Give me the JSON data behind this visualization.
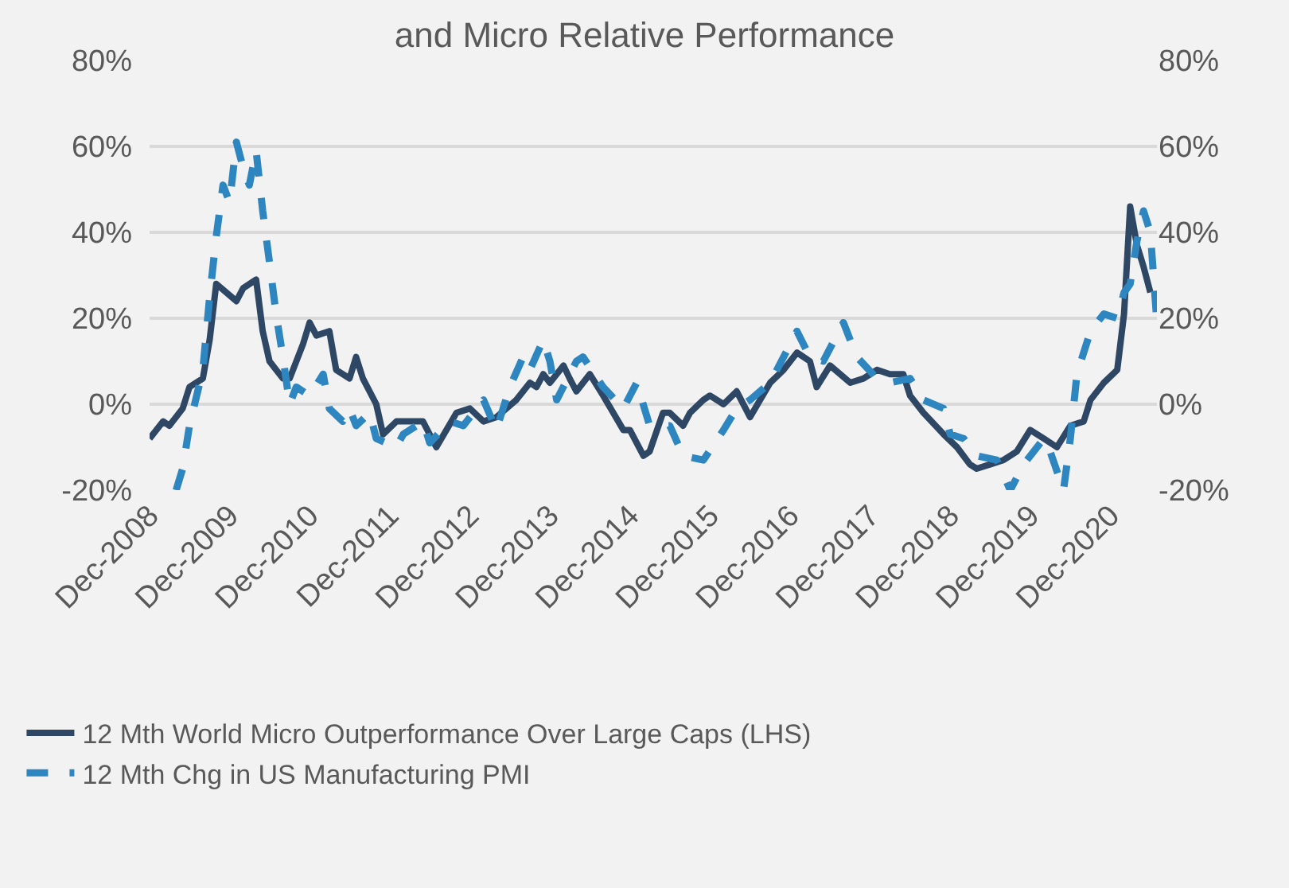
{
  "chart_data": {
    "type": "line",
    "title": "and Micro Relative Performance",
    "xlim": [
      "2008-12",
      "2021-07"
    ],
    "xticks": [
      {
        "value": "2008-12",
        "label": "Dec-2008"
      },
      {
        "value": "2009-12",
        "label": "Dec-2009"
      },
      {
        "value": "2010-12",
        "label": "Dec-2010"
      },
      {
        "value": "2011-12",
        "label": "Dec-2011"
      },
      {
        "value": "2012-12",
        "label": "Dec-2012"
      },
      {
        "value": "2013-12",
        "label": "Dec-2013"
      },
      {
        "value": "2014-12",
        "label": "Dec-2014"
      },
      {
        "value": "2015-12",
        "label": "Dec-2015"
      },
      {
        "value": "2016-12",
        "label": "Dec-2016"
      },
      {
        "value": "2017-12",
        "label": "Dec-2017"
      },
      {
        "value": "2018-12",
        "label": "Dec-2018"
      },
      {
        "value": "2019-12",
        "label": "Dec-2019"
      },
      {
        "value": "2020-12",
        "label": "Dec-2020"
      }
    ],
    "ylim": [
      -20,
      80
    ],
    "yticks": [
      {
        "value": -20,
        "label": "-20%"
      },
      {
        "value": 0,
        "label": "0%"
      },
      {
        "value": 20,
        "label": "20%"
      },
      {
        "value": 40,
        "label": "40%"
      },
      {
        "value": 60,
        "label": "60%"
      },
      {
        "value": 80,
        "label": "80%"
      }
    ],
    "y2lim": [
      -20,
      80
    ],
    "y2ticks": [
      {
        "value": -20,
        "label": "-20%"
      },
      {
        "value": 0,
        "label": "0%"
      },
      {
        "value": 20,
        "label": "20%"
      },
      {
        "value": 40,
        "label": "40%"
      },
      {
        "value": 60,
        "label": "60%"
      },
      {
        "value": 80,
        "label": "80%"
      }
    ],
    "grid": "y",
    "legend": "bottom",
    "marker": "none",
    "series": [
      {
        "name": "12 Mth World Micro Outperformance Over Large Caps (LHS)",
        "color": "#2e4765",
        "line_style": "solid",
        "x": [
          "2008-12",
          "2009-02",
          "2009-03",
          "2009-05",
          "2009-06",
          "2009-08",
          "2009-09",
          "2009-10",
          "2010-01",
          "2010-02",
          "2010-04",
          "2010-05",
          "2010-06",
          "2010-08",
          "2010-09",
          "2010-11",
          "2010-12",
          "2011-01",
          "2011-03",
          "2011-04",
          "2011-06",
          "2011-07",
          "2011-08",
          "2011-10",
          "2011-11",
          "2012-01",
          "2012-04",
          "2012-05",
          "2012-07",
          "2012-10",
          "2012-12",
          "2013-02",
          "2013-04",
          "2013-07",
          "2013-09",
          "2013-10",
          "2013-11",
          "2013-12",
          "2014-02",
          "2014-03",
          "2014-04",
          "2014-06",
          "2014-08",
          "2014-11",
          "2014-12",
          "2015-02",
          "2015-03",
          "2015-05",
          "2015-06",
          "2015-08",
          "2015-09",
          "2015-11",
          "2015-12",
          "2016-02",
          "2016-04",
          "2016-06",
          "2016-09",
          "2016-11",
          "2017-01",
          "2017-03",
          "2017-04",
          "2017-06",
          "2017-09",
          "2017-11",
          "2018-01",
          "2018-03",
          "2018-05",
          "2018-06",
          "2018-08",
          "2018-11",
          "2019-01",
          "2019-03",
          "2019-04",
          "2019-06",
          "2019-08",
          "2019-10",
          "2019-12",
          "2020-02",
          "2020-04",
          "2020-06",
          "2020-08",
          "2020-09",
          "2020-11",
          "2021-01",
          "2021-02",
          "2021-03",
          "2021-04",
          "2021-05",
          "2021-06"
        ],
        "values": [
          -8,
          -4,
          -5,
          -1,
          4,
          6,
          15,
          28,
          24,
          27,
          29,
          17,
          10,
          6,
          6,
          14,
          19,
          16,
          17,
          8,
          6,
          11,
          6,
          0,
          -7,
          -4,
          -4,
          -4,
          -10,
          -2,
          -1,
          -4,
          -3,
          1,
          5,
          4,
          7,
          5,
          9,
          6,
          3,
          7,
          2,
          -6,
          -6,
          -12,
          -11,
          -2,
          -2,
          -5,
          -2,
          1,
          2,
          0,
          3,
          -3,
          5,
          8,
          12,
          10,
          4,
          9,
          5,
          6,
          8,
          7,
          7,
          2,
          -2,
          -7,
          -10,
          -14,
          -15,
          -14,
          -13,
          -11,
          -6,
          -8,
          -10,
          -5,
          -4,
          1,
          5,
          8,
          21,
          46,
          37,
          32,
          26
        ]
      },
      {
        "name": "12 Mth Chg in US Manufacturing PMI",
        "color": "#2e86c1",
        "line_style": "dashed",
        "axis": "y2",
        "x": [
          "2009-04",
          "2009-05",
          "2009-06",
          "2009-08",
          "2009-09",
          "2009-10",
          "2009-11",
          "2009-12",
          "2010-01",
          "2010-02",
          "2010-03",
          "2010-04",
          "2010-05",
          "2010-06",
          "2010-07",
          "2010-08",
          "2010-09",
          "2010-10",
          "2010-12",
          "2011-02",
          "2011-03",
          "2011-05",
          "2011-06",
          "2011-07",
          "2011-09",
          "2011-10",
          "2012-01",
          "2012-02",
          "2012-05",
          "2012-06",
          "2012-09",
          "2012-11",
          "2013-02",
          "2013-04",
          "2013-06",
          "2013-08",
          "2013-09",
          "2013-11",
          "2013-12",
          "2014-01",
          "2014-04",
          "2014-05",
          "2014-08",
          "2014-11",
          "2015-01",
          "2015-03",
          "2015-06",
          "2015-08",
          "2015-11",
          "2016-02",
          "2016-04",
          "2016-06",
          "2016-09",
          "2016-11",
          "2017-01",
          "2017-03",
          "2017-05",
          "2017-08",
          "2017-10",
          "2018-01",
          "2018-03",
          "2018-06",
          "2018-08",
          "2018-11",
          "2018-12",
          "2019-02",
          "2019-04",
          "2019-07",
          "2019-09",
          "2019-11",
          "2020-02",
          "2020-03",
          "2020-05",
          "2020-06",
          "2020-07",
          "2020-09",
          "2020-11",
          "2021-01",
          "2021-02",
          "2021-03",
          "2021-04",
          "2021-05",
          "2021-06",
          "2021-07"
        ],
        "values": [
          -20,
          -15,
          -5,
          8,
          25,
          39,
          51,
          47,
          61,
          55,
          51,
          59,
          45,
          33,
          21,
          11,
          0,
          4,
          2,
          7,
          -1,
          -4,
          -1,
          -5,
          -2,
          -8,
          -10,
          -7,
          -4,
          -9,
          -4,
          -5,
          1,
          -6,
          4,
          11,
          8,
          15,
          10,
          1,
          10,
          11,
          4,
          -1,
          5,
          -5,
          -5,
          -12,
          -13,
          -6,
          -1,
          1,
          5,
          11,
          17,
          11,
          10,
          19,
          11,
          6,
          5,
          6,
          1,
          -1,
          -7,
          -8,
          -12,
          -13,
          -20,
          -14,
          -8,
          -11,
          -20,
          -8,
          7,
          17,
          21,
          20,
          26,
          28,
          38,
          45,
          40,
          19
        ]
      }
    ]
  }
}
